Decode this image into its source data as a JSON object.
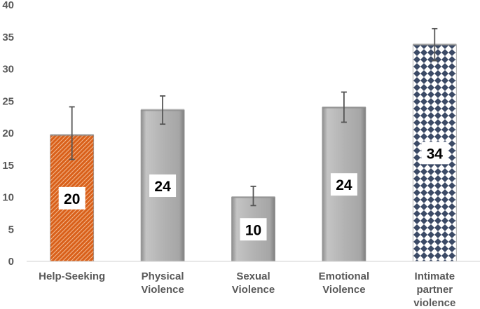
{
  "chart_data": {
    "type": "bar",
    "title": "",
    "xlabel": "",
    "ylabel": "",
    "ylim": [
      0,
      40
    ],
    "yticks": [
      0,
      5,
      10,
      15,
      20,
      25,
      30,
      35,
      40
    ],
    "grid": false,
    "legend": "none",
    "categories": [
      [
        "Help-Seeking"
      ],
      [
        "Physical",
        "Violence"
      ],
      [
        "Sexual",
        "Violence"
      ],
      [
        "Emotional",
        "Violence"
      ],
      [
        "Intimate",
        "partner",
        "violence"
      ]
    ],
    "values": [
      19.7,
      23.6,
      10.0,
      24.0,
      33.8
    ],
    "data_labels": [
      "20",
      "24",
      "10",
      "24",
      "34"
    ],
    "error_low": [
      15.9,
      21.4,
      8.7,
      21.7,
      31.3
    ],
    "error_high": [
      24.1,
      25.8,
      11.7,
      26.4,
      36.3
    ],
    "fills": [
      "orange-hatched",
      "gray",
      "gray",
      "gray",
      "navy-diamond-pattern"
    ],
    "colors": {
      "orange": "#d9601a",
      "gray": "#b1b1b1",
      "navy": "#3b4a66",
      "axis_text": "#595959",
      "error_bar": "#555555"
    }
  }
}
